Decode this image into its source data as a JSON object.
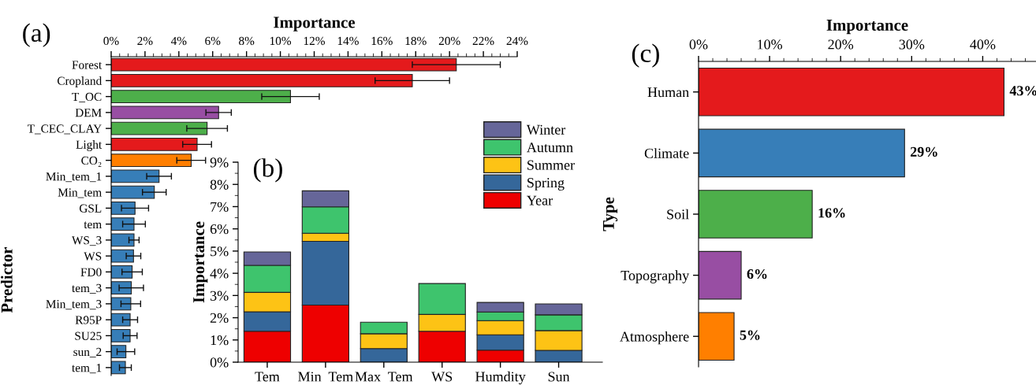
{
  "chart_data": [
    {
      "type": "bar",
      "orientation": "horizontal",
      "xlabel": "Importance",
      "ylabel": "Predictor",
      "annotations": [
        "(a)"
      ],
      "categories": [
        "Forest",
        "Cropland",
        "T_OC",
        "DEM",
        "T_CEC_CLAY",
        "Light",
        "CO₂",
        "Min_tem_1",
        "Min_tem",
        "GSL",
        "tem",
        "WS_3",
        "WS",
        "FD0",
        "tem_3",
        "Min_tem_3",
        "R95P",
        "SU25",
        "sun_2",
        "tem_1"
      ],
      "values": [
        20.4,
        17.8,
        10.6,
        6.35,
        5.67,
        5.08,
        4.73,
        2.83,
        2.55,
        1.41,
        1.35,
        1.35,
        1.32,
        1.24,
        1.19,
        1.16,
        1.12,
        1.12,
        0.87,
        0.84
      ],
      "errors": [
        2.6,
        2.2,
        1.7,
        0.75,
        1.2,
        0.85,
        0.85,
        0.73,
        0.7,
        0.8,
        0.67,
        0.3,
        0.43,
        0.6,
        0.72,
        0.58,
        0.44,
        0.41,
        0.52,
        0.35
      ],
      "colors": [
        "#e41a1c",
        "#e41a1c",
        "#4daf4a",
        "#984ea3",
        "#4daf4a",
        "#e41a1c",
        "#ff7f00",
        "#377eb8",
        "#377eb8",
        "#377eb8",
        "#377eb8",
        "#377eb8",
        "#377eb8",
        "#377eb8",
        "#377eb8",
        "#377eb8",
        "#377eb8",
        "#377eb8",
        "#377eb8",
        "#377eb8"
      ],
      "xlim": [
        0,
        24
      ],
      "xticks": [
        {
          "value": 0,
          "label": "0%"
        },
        {
          "value": 2,
          "label": "2%"
        },
        {
          "value": 4,
          "label": "4%"
        },
        {
          "value": 6,
          "label": "6%"
        },
        {
          "value": 8,
          "label": "8%"
        },
        {
          "value": 10,
          "label": "10%"
        },
        {
          "value": 12,
          "label": "12%"
        },
        {
          "value": 14,
          "label": "14%"
        },
        {
          "value": 16,
          "label": "16%"
        },
        {
          "value": 18,
          "label": "18%"
        },
        {
          "value": 20,
          "label": "20%"
        },
        {
          "value": 22,
          "label": "22%"
        },
        {
          "value": 24,
          "label": "24%"
        }
      ]
    },
    {
      "type": "bar",
      "stacked": true,
      "ylabel": "Importance",
      "annotations": [
        "(b)"
      ],
      "legend": "top right",
      "categories": [
        "Tem",
        "Min  Tem",
        "Max  Tem",
        "WS",
        "Humdity",
        "Sun"
      ],
      "series": [
        {
          "name": "Year",
          "color": "#ee0000",
          "values": [
            1.39,
            2.57,
            null,
            1.39,
            0.54,
            null
          ]
        },
        {
          "name": "Spring",
          "color": "#35679a",
          "values": [
            0.88,
            2.87,
            0.61,
            null,
            0.69,
            0.53
          ]
        },
        {
          "name": "Summer",
          "color": "#fdc315",
          "values": [
            0.87,
            0.36,
            0.67,
            0.76,
            0.64,
            0.89
          ]
        },
        {
          "name": "Autumn",
          "color": "#3ec46d",
          "values": [
            1.22,
            1.19,
            0.52,
            1.39,
            0.39,
            0.71
          ]
        },
        {
          "name": "Winter",
          "color": "#666699",
          "values": [
            0.6,
            0.72,
            null,
            null,
            0.43,
            0.49
          ]
        }
      ],
      "ylim": [
        0,
        9
      ],
      "yticks": [
        {
          "value": 0,
          "label": "0%"
        },
        {
          "value": 1,
          "label": "1%"
        },
        {
          "value": 2,
          "label": "2%"
        },
        {
          "value": 3,
          "label": "3%"
        },
        {
          "value": 4,
          "label": "4%"
        },
        {
          "value": 5,
          "label": "5%"
        },
        {
          "value": 6,
          "label": "6%"
        },
        {
          "value": 7,
          "label": "7%"
        },
        {
          "value": 8,
          "label": "8%"
        },
        {
          "value": 9,
          "label": "9%"
        }
      ]
    },
    {
      "type": "bar",
      "orientation": "horizontal",
      "xlabel": "Importance",
      "ylabel": "Type",
      "annotations": [
        "(c)"
      ],
      "categories": [
        "Human",
        "Climate",
        "Soil",
        "Topography",
        "Atmosphere"
      ],
      "values": [
        43,
        29,
        16,
        6,
        5
      ],
      "value_labels": [
        "43%",
        "29%",
        "16%",
        "6%",
        "5%"
      ],
      "colors": [
        "#e41a1c",
        "#377eb8",
        "#4daf4a",
        "#984ea3",
        "#ff7f00"
      ],
      "xlim": [
        0,
        47.5
      ],
      "xticks": [
        {
          "value": 0,
          "label": "0%"
        },
        {
          "value": 10,
          "label": "10%"
        },
        {
          "value": 20,
          "label": "20%"
        },
        {
          "value": 30,
          "label": "30%"
        },
        {
          "value": 40,
          "label": "40%"
        }
      ]
    }
  ]
}
